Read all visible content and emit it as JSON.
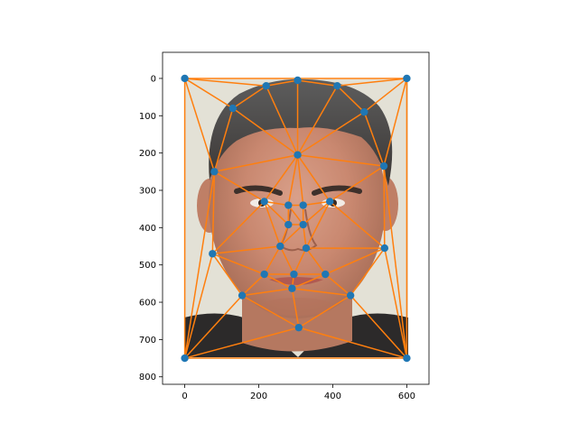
{
  "chart_data": {
    "type": "scatter",
    "title": "",
    "xlabel": "",
    "ylabel": "",
    "xlim": [
      -60,
      660
    ],
    "ylim": [
      820,
      -70
    ],
    "y_inverted": true,
    "grid": false,
    "background_image": "face-portrait-photo",
    "xticks": [
      0,
      200,
      400,
      600
    ],
    "yticks": [
      0,
      100,
      200,
      300,
      400,
      500,
      600,
      700,
      800
    ],
    "point_color": "#1f77b4",
    "line_color": "#ff7f0e",
    "points": [
      [
        0,
        0
      ],
      [
        220,
        20
      ],
      [
        305,
        5
      ],
      [
        412,
        20
      ],
      [
        600,
        0
      ],
      [
        130,
        80
      ],
      [
        485,
        90
      ],
      [
        305,
        205
      ],
      [
        80,
        250
      ],
      [
        538,
        235
      ],
      [
        215,
        330
      ],
      [
        280,
        340
      ],
      [
        320,
        340
      ],
      [
        392,
        330
      ],
      [
        280,
        392
      ],
      [
        320,
        392
      ],
      [
        258,
        450
      ],
      [
        328,
        455
      ],
      [
        75,
        470
      ],
      [
        540,
        455
      ],
      [
        215,
        525
      ],
      [
        295,
        525
      ],
      [
        380,
        525
      ],
      [
        155,
        582
      ],
      [
        290,
        563
      ],
      [
        448,
        582
      ],
      [
        308,
        668
      ],
      [
        0,
        750
      ],
      [
        600,
        750
      ]
    ],
    "edges": [
      [
        0,
        1
      ],
      [
        1,
        2
      ],
      [
        2,
        3
      ],
      [
        3,
        4
      ],
      [
        0,
        4
      ],
      [
        0,
        5
      ],
      [
        1,
        5
      ],
      [
        5,
        7
      ],
      [
        1,
        7
      ],
      [
        2,
        7
      ],
      [
        3,
        7
      ],
      [
        3,
        6
      ],
      [
        4,
        6
      ],
      [
        6,
        7
      ],
      [
        0,
        8
      ],
      [
        5,
        8
      ],
      [
        7,
        8
      ],
      [
        6,
        9
      ],
      [
        4,
        9
      ],
      [
        7,
        9
      ],
      [
        8,
        10
      ],
      [
        7,
        10
      ],
      [
        10,
        11
      ],
      [
        7,
        11
      ],
      [
        7,
        12
      ],
      [
        11,
        12
      ],
      [
        12,
        13
      ],
      [
        7,
        13
      ],
      [
        9,
        13
      ],
      [
        10,
        14
      ],
      [
        11,
        14
      ],
      [
        12,
        15
      ],
      [
        14,
        15
      ],
      [
        13,
        15
      ],
      [
        11,
        15
      ],
      [
        8,
        18
      ],
      [
        10,
        18
      ],
      [
        14,
        16
      ],
      [
        16,
        15
      ],
      [
        15,
        17
      ],
      [
        13,
        17
      ],
      [
        9,
        19
      ],
      [
        13,
        19
      ],
      [
        17,
        19
      ],
      [
        18,
        16
      ],
      [
        10,
        16
      ],
      [
        18,
        20
      ],
      [
        16,
        20
      ],
      [
        16,
        21
      ],
      [
        17,
        21
      ],
      [
        20,
        21
      ],
      [
        21,
        22
      ],
      [
        17,
        22
      ],
      [
        19,
        22
      ],
      [
        18,
        23
      ],
      [
        20,
        23
      ],
      [
        23,
        24
      ],
      [
        20,
        24
      ],
      [
        21,
        24
      ],
      [
        22,
        24
      ],
      [
        24,
        25
      ],
      [
        22,
        25
      ],
      [
        19,
        25
      ],
      [
        23,
        26
      ],
      [
        24,
        26
      ],
      [
        25,
        26
      ],
      [
        0,
        27
      ],
      [
        8,
        27
      ],
      [
        18,
        27
      ],
      [
        23,
        27
      ],
      [
        26,
        27
      ],
      [
        27,
        28
      ],
      [
        4,
        28
      ],
      [
        9,
        28
      ],
      [
        19,
        28
      ],
      [
        25,
        28
      ],
      [
        26,
        28
      ]
    ]
  }
}
